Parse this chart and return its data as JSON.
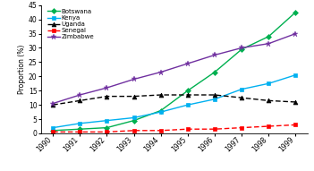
{
  "years": [
    1990,
    1991,
    1992,
    1993,
    1994,
    1995,
    1996,
    1997,
    1998,
    1999
  ],
  "botswana": [
    1.0,
    1.5,
    2.0,
    4.5,
    8.0,
    15.0,
    21.5,
    29.5,
    34.0,
    42.5
  ],
  "kenya": [
    2.0,
    3.5,
    4.5,
    5.5,
    7.5,
    10.0,
    12.0,
    15.5,
    17.5,
    20.5
  ],
  "uganda": [
    10.0,
    11.5,
    13.0,
    13.0,
    13.5,
    13.5,
    13.5,
    12.5,
    11.5,
    11.0
  ],
  "senegal": [
    0.5,
    0.5,
    0.5,
    1.0,
    1.0,
    1.5,
    1.5,
    2.0,
    2.5,
    3.0
  ],
  "zimbabwe": [
    10.5,
    13.5,
    16.0,
    19.0,
    21.5,
    24.5,
    27.5,
    30.0,
    31.5,
    35.0
  ],
  "colors": {
    "botswana": "#00b050",
    "kenya": "#00b0f0",
    "uganda": "#000000",
    "senegal": "#ff0000",
    "zimbabwe": "#7030a0"
  },
  "ylabel": "Proportion (%)",
  "ylim": [
    0,
    45
  ],
  "yticks": [
    0,
    5,
    10,
    15,
    20,
    25,
    30,
    35,
    40,
    45
  ],
  "legend_labels": [
    "Botswana",
    "Kenya",
    "Uganda",
    "Senegal",
    "Zimbabwe"
  ]
}
